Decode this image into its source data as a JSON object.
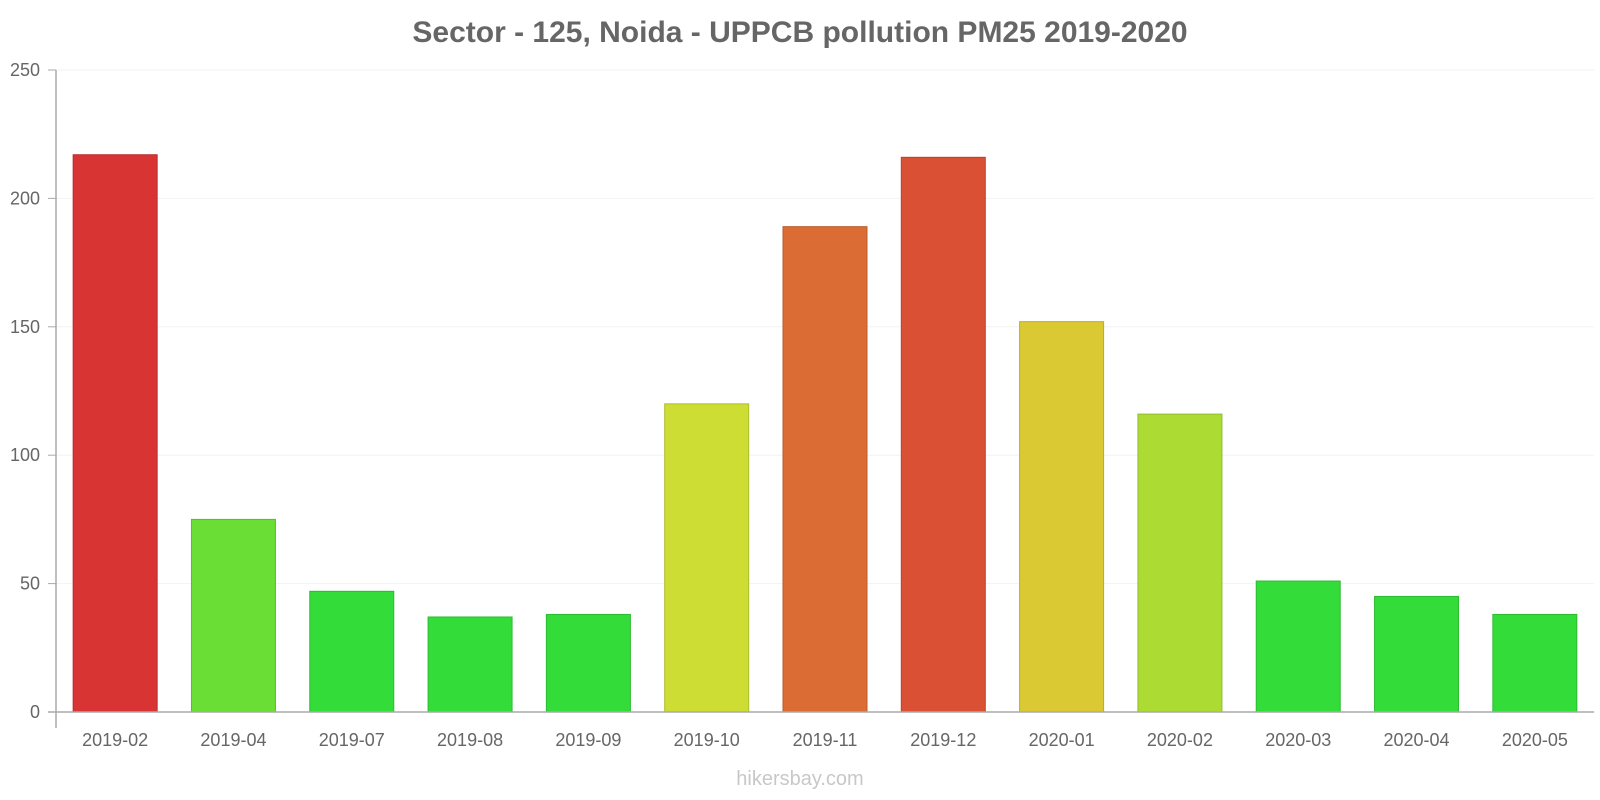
{
  "chart_data": {
    "type": "bar",
    "title": "Sector - 125, Noida - UPPCB pollution PM25 2019-2020",
    "xlabel": "",
    "ylabel": "",
    "ylim": [
      0,
      250
    ],
    "yticks": [
      0,
      50,
      100,
      150,
      200,
      250
    ],
    "grid": true,
    "categories": [
      "2019-02",
      "2019-04",
      "2019-07",
      "2019-08",
      "2019-09",
      "2019-10",
      "2019-11",
      "2019-12",
      "2020-01",
      "2020-02",
      "2020-03",
      "2020-04",
      "2020-05"
    ],
    "values": [
      217,
      75,
      47,
      37,
      38,
      120,
      189,
      216,
      152,
      116,
      51,
      45,
      38
    ],
    "colors": [
      "#d93434",
      "#6ade34",
      "#34dc3a",
      "#34dc3a",
      "#34dc3a",
      "#cddd34",
      "#db6c34",
      "#da5034",
      "#dbc934",
      "#acdc34",
      "#34dc3a",
      "#34dc3a",
      "#34dc3a"
    ]
  },
  "footer": {
    "source": "hikersbay.com"
  }
}
